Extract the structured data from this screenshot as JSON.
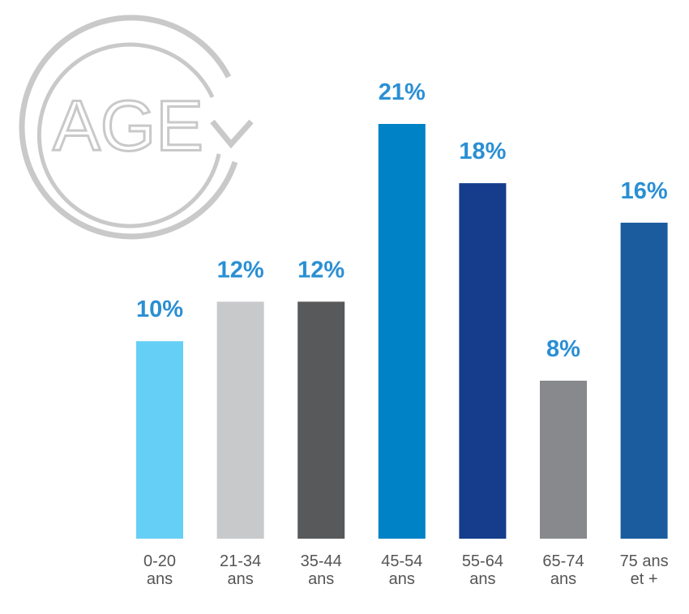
{
  "logo_text": "AGE",
  "chart_data": {
    "type": "bar",
    "categories": [
      "0-20\nans",
      "21-34\nans",
      "35-44\nans",
      "45-54\nans",
      "55-64\nans",
      "65-74\nans",
      "75 ans\net +"
    ],
    "values": [
      10,
      12,
      12,
      21,
      18,
      8,
      16
    ],
    "value_labels": [
      "10%",
      "12%",
      "12%",
      "21%",
      "18%",
      "8%",
      "16%"
    ],
    "colors": [
      "#66cff5",
      "#c8c9cb",
      "#58595b",
      "#0082c6",
      "#163c8c",
      "#88898c",
      "#1a5c9e"
    ]
  }
}
